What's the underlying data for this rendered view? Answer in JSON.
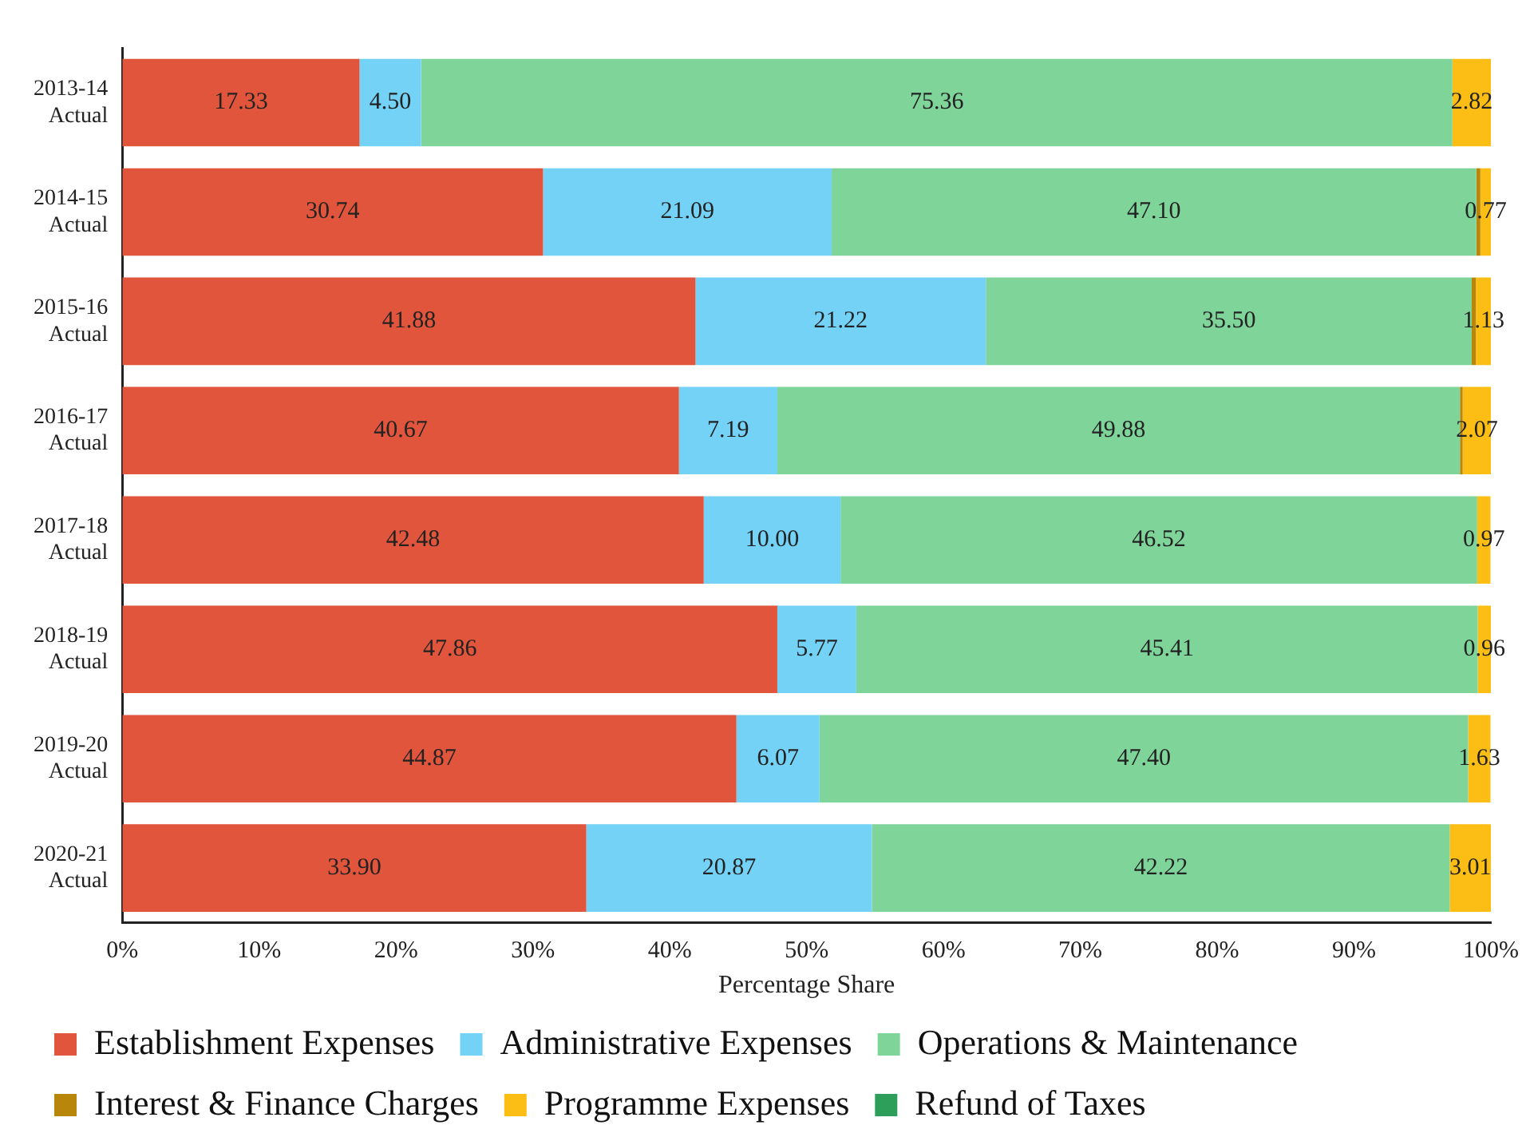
{
  "chart_data": {
    "type": "bar",
    "orientation": "horizontal",
    "stacked": true,
    "xlabel": "Percentage Share",
    "categories": [
      "2013-14 Actual",
      "2014-15 Actual",
      "2015-16 Actual",
      "2016-17 Actual",
      "2017-18 Actual",
      "2018-19 Actual",
      "2019-20 Actual",
      "2020-21 Actual"
    ],
    "series": [
      {
        "name": "Establishment Expenses",
        "color": "#e0553b",
        "values": [
          17.33,
          30.74,
          41.88,
          40.67,
          42.48,
          47.86,
          44.87,
          33.9
        ],
        "value_labels": [
          "17.33",
          "30.74",
          "41.88",
          "40.67",
          "42.48",
          "47.86",
          "44.87",
          "33.90"
        ]
      },
      {
        "name": "Administrative Expenses",
        "color": "#73d2f6",
        "values": [
          4.5,
          21.09,
          21.22,
          7.19,
          10.0,
          5.77,
          6.07,
          20.87
        ],
        "value_labels": [
          "4.50",
          "21.09",
          "21.22",
          "7.19",
          "10.00",
          "5.77",
          "6.07",
          "20.87"
        ]
      },
      {
        "name": "Operations & Maintenance",
        "color": "#7fd49a",
        "values": [
          75.36,
          47.1,
          35.5,
          49.88,
          46.52,
          45.41,
          47.4,
          42.22
        ],
        "value_labels": [
          "75.36",
          "47.10",
          "35.50",
          "49.88",
          "46.52",
          "45.41",
          "47.40",
          "42.22"
        ]
      },
      {
        "name": "Interest & Finance Charges",
        "color": "#b8860b",
        "values": [
          0,
          0.3,
          0.3,
          0.2,
          null,
          0,
          null,
          0
        ]
      },
      {
        "name": "Programme Expenses",
        "color": "#fcbd14",
        "values": [
          2.82,
          0.77,
          1.13,
          2.07,
          0.97,
          0.96,
          1.63,
          3.01
        ],
        "value_labels": [
          "2.82",
          "0.77",
          "1.13",
          "2.07",
          "0.97",
          "0.96",
          "1.63",
          "3.01"
        ]
      },
      {
        "name": "Refund of Taxes",
        "color": "#2e9e5b",
        "values": [
          0,
          0,
          0,
          0,
          0,
          0,
          0,
          0
        ]
      }
    ],
    "xlim": [
      0,
      100
    ],
    "xticks": [
      {
        "value": 0,
        "label": "0%"
      },
      {
        "value": 10,
        "label": "10%"
      },
      {
        "value": 20,
        "label": "20%"
      },
      {
        "value": 30,
        "label": "30%"
      },
      {
        "value": 40,
        "label": "40%"
      },
      {
        "value": 50,
        "label": "50%"
      },
      {
        "value": 60,
        "label": "60%"
      },
      {
        "value": 70,
        "label": "70%"
      },
      {
        "value": 80,
        "label": "80%"
      },
      {
        "value": 90,
        "label": "90%"
      },
      {
        "value": 100,
        "label": "100%"
      }
    ],
    "grid": false,
    "legend": "bottom"
  }
}
